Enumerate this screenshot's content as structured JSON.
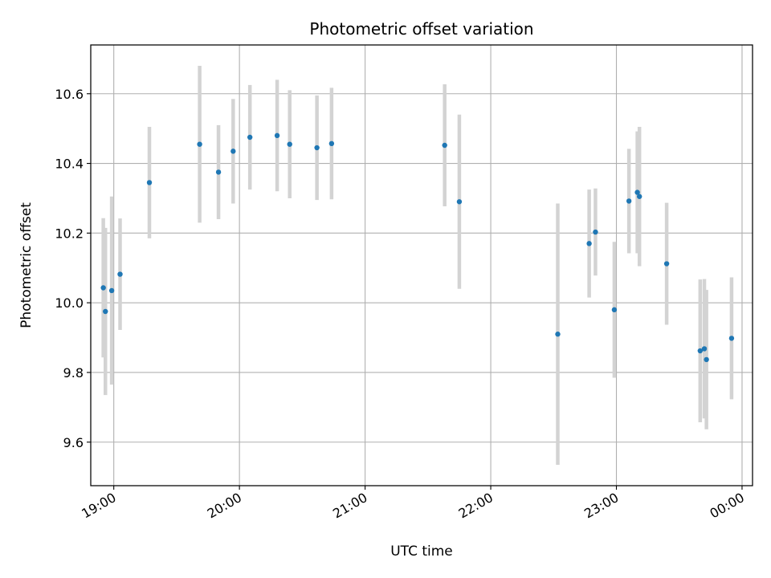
{
  "chart_data": {
    "type": "scatter",
    "title": "Photometric offset variation",
    "xlabel": "UTC time",
    "ylabel": "Photometric offset",
    "xlim": [
      "18:49",
      "00:05"
    ],
    "ylim": [
      9.475,
      10.74
    ],
    "x_ticks": [
      "19:00",
      "20:00",
      "21:00",
      "22:00",
      "23:00",
      "00:00"
    ],
    "y_ticks": [
      9.6,
      9.8,
      10.0,
      10.2,
      10.4,
      10.6
    ],
    "y_tick_labels": [
      "9.6",
      "9.8",
      "10.0",
      "10.2",
      "10.4",
      "10.6"
    ],
    "grid": true,
    "colors": {
      "point": "#1f77b4",
      "errorbar": "#d3d3d3",
      "grid": "#b0b0b0",
      "axis": "#000000"
    },
    "points": [
      {
        "x": "18:55",
        "y": 10.043,
        "yerr": [
          9.843,
          10.243
        ]
      },
      {
        "x": "18:56",
        "y": 9.975,
        "yerr": [
          9.735,
          10.215
        ]
      },
      {
        "x": "18:59",
        "y": 10.035,
        "yerr": [
          9.765,
          10.305
        ]
      },
      {
        "x": "19:03",
        "y": 10.082,
        "yerr": [
          9.922,
          10.242
        ]
      },
      {
        "x": "19:17",
        "y": 10.345,
        "yerr": [
          10.185,
          10.505
        ]
      },
      {
        "x": "19:41",
        "y": 10.455,
        "yerr": [
          10.23,
          10.68
        ]
      },
      {
        "x": "19:50",
        "y": 10.375,
        "yerr": [
          10.24,
          10.51
        ]
      },
      {
        "x": "19:57",
        "y": 10.435,
        "yerr": [
          10.285,
          10.585
        ]
      },
      {
        "x": "20:05",
        "y": 10.475,
        "yerr": [
          10.325,
          10.625
        ]
      },
      {
        "x": "20:18",
        "y": 10.48,
        "yerr": [
          10.32,
          10.64
        ]
      },
      {
        "x": "20:24",
        "y": 10.455,
        "yerr": [
          10.3,
          10.61
        ]
      },
      {
        "x": "20:37",
        "y": 10.445,
        "yerr": [
          10.295,
          10.595
        ]
      },
      {
        "x": "20:44",
        "y": 10.457,
        "yerr": [
          10.297,
          10.617
        ]
      },
      {
        "x": "21:38",
        "y": 10.452,
        "yerr": [
          10.277,
          10.627
        ]
      },
      {
        "x": "21:45",
        "y": 10.29,
        "yerr": [
          10.04,
          10.54
        ]
      },
      {
        "x": "22:32",
        "y": 9.91,
        "yerr": [
          9.535,
          10.285
        ]
      },
      {
        "x": "22:47",
        "y": 10.17,
        "yerr": [
          10.015,
          10.325
        ]
      },
      {
        "x": "22:50",
        "y": 10.203,
        "yerr": [
          10.078,
          10.328
        ]
      },
      {
        "x": "22:59",
        "y": 9.98,
        "yerr": [
          9.785,
          10.175
        ]
      },
      {
        "x": "23:06",
        "y": 10.292,
        "yerr": [
          10.142,
          10.442
        ]
      },
      {
        "x": "23:10",
        "y": 10.317,
        "yerr": [
          10.142,
          10.492
        ]
      },
      {
        "x": "23:11",
        "y": 10.305,
        "yerr": [
          10.105,
          10.505
        ]
      },
      {
        "x": "23:24",
        "y": 10.112,
        "yerr": [
          9.937,
          10.287
        ]
      },
      {
        "x": "23:40",
        "y": 9.862,
        "yerr": [
          9.657,
          10.067
        ]
      },
      {
        "x": "23:42",
        "y": 9.868,
        "yerr": [
          9.668,
          10.068
        ]
      },
      {
        "x": "23:43",
        "y": 9.837,
        "yerr": [
          9.637,
          10.037
        ]
      },
      {
        "x": "23:55",
        "y": 9.898,
        "yerr": [
          9.723,
          10.073
        ]
      }
    ]
  }
}
